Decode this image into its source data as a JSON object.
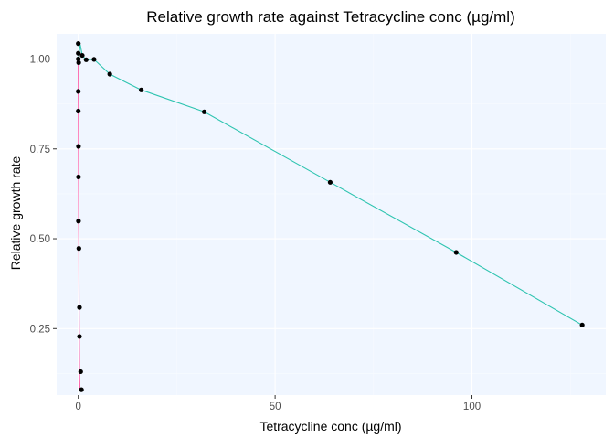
{
  "chart_data": {
    "type": "line",
    "title": "Relative growth rate against Tetracycline conc (µg/ml)",
    "xlabel": "Tetracycline conc (µg/ml)",
    "ylabel": "Relative growth rate",
    "xlim": [
      -5.5,
      134
    ],
    "ylim": [
      0.065,
      1.07
    ],
    "x_ticks": [
      0,
      50,
      100
    ],
    "y_ticks": [
      0.25,
      0.5,
      0.75,
      1.0
    ],
    "x_tick_labels": [
      "0",
      "50",
      "100"
    ],
    "y_tick_labels": [
      "0.25",
      "0.50",
      "0.75",
      "1.00"
    ],
    "grid": true,
    "legend": "none",
    "series": [
      {
        "color": "#ff4fa0",
        "x": [
          0.0,
          0.01,
          0.02,
          0.03,
          0.05,
          0.07,
          0.1,
          0.15,
          0.2,
          0.25,
          0.3,
          0.4,
          0.6,
          0.8
        ],
        "y": [
          1.0,
          0.99,
          0.91,
          0.855,
          0.757,
          0.672,
          0.549,
          0.473,
          0.309,
          0.228,
          0.13,
          0.08,
          0.08,
          0.08
        ]
      },
      {
        "color": "#2ec4b0",
        "x": [
          0.0,
          0.5,
          1,
          2,
          4,
          8,
          16,
          32,
          64,
          96,
          128
        ],
        "y": [
          1.0,
          1.04,
          1.01,
          0.998,
          0.999,
          0.958,
          0.914,
          0.853,
          0.657,
          0.462,
          0.26
        ]
      }
    ],
    "points": [
      {
        "x": 0.0,
        "y": 1.043
      },
      {
        "x": 0.0,
        "y": 1.016
      },
      {
        "x": 0.0,
        "y": 1.0
      },
      {
        "x": 0.1,
        "y": 0.99
      },
      {
        "x": 1.0,
        "y": 1.01
      },
      {
        "x": 2.0,
        "y": 0.998
      },
      {
        "x": 4.0,
        "y": 0.999
      },
      {
        "x": 8.0,
        "y": 0.958
      },
      {
        "x": 16.0,
        "y": 0.914
      },
      {
        "x": 32.0,
        "y": 0.853
      },
      {
        "x": 64.0,
        "y": 0.657
      },
      {
        "x": 96.0,
        "y": 0.462
      },
      {
        "x": 128.0,
        "y": 0.26
      },
      {
        "x": 0.0,
        "y": 0.91
      },
      {
        "x": 0.0,
        "y": 0.855
      },
      {
        "x": 0.05,
        "y": 0.757
      },
      {
        "x": 0.05,
        "y": 0.672
      },
      {
        "x": 0.05,
        "y": 0.549
      },
      {
        "x": 0.15,
        "y": 0.473
      },
      {
        "x": 0.3,
        "y": 0.309
      },
      {
        "x": 0.3,
        "y": 0.228
      },
      {
        "x": 0.6,
        "y": 0.13
      },
      {
        "x": 0.8,
        "y": 0.08
      }
    ],
    "colors": {
      "panel_bg": "#f0f6ff",
      "grid_major": "#ffffff",
      "grid_minor": "#f8fbff",
      "point": "#000000"
    }
  }
}
